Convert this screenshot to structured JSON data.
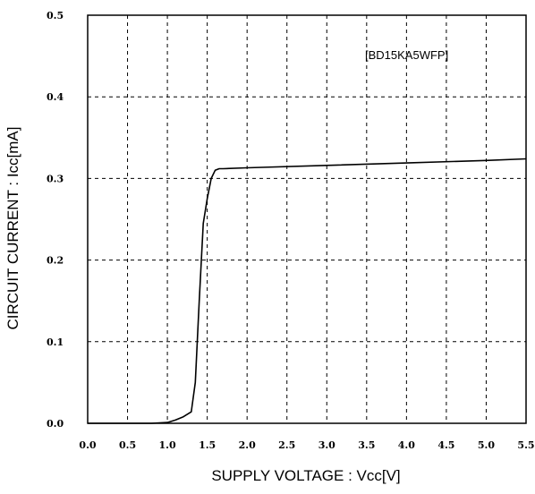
{
  "chart_data": {
    "type": "line",
    "title": "",
    "xlabel": "SUPPLY VOLTAGE : Vcc[V]",
    "ylabel": "CIRCUIT CURRENT : Icc[mA]",
    "xlim": [
      0,
      5.5
    ],
    "ylim": [
      0,
      0.5
    ],
    "x_tick_labels": [
      "0.0",
      "0.5",
      "1.0",
      "1.5",
      "2.0",
      "2.5",
      "3.0",
      "3.5",
      "4.0",
      "4.5",
      "5.0",
      "5.5"
    ],
    "y_tick_labels": [
      "0.0",
      "0.1",
      "0.2",
      "0.3",
      "0.4",
      "0.5"
    ],
    "grid": true,
    "grid_style": "dashed",
    "annotation": "[BD15KA5WFP]",
    "series": [
      {
        "color": "#000000",
        "x": [
          0.0,
          0.8,
          1.0,
          1.1,
          1.2,
          1.3,
          1.35,
          1.4,
          1.45,
          1.5,
          1.55,
          1.6,
          1.65,
          1.7,
          2.0,
          3.0,
          4.0,
          5.0,
          5.5
        ],
        "y": [
          0.0,
          0.0,
          0.001,
          0.004,
          0.008,
          0.014,
          0.05,
          0.15,
          0.245,
          0.275,
          0.3,
          0.31,
          0.312,
          0.312,
          0.313,
          0.316,
          0.319,
          0.322,
          0.324
        ]
      }
    ]
  }
}
